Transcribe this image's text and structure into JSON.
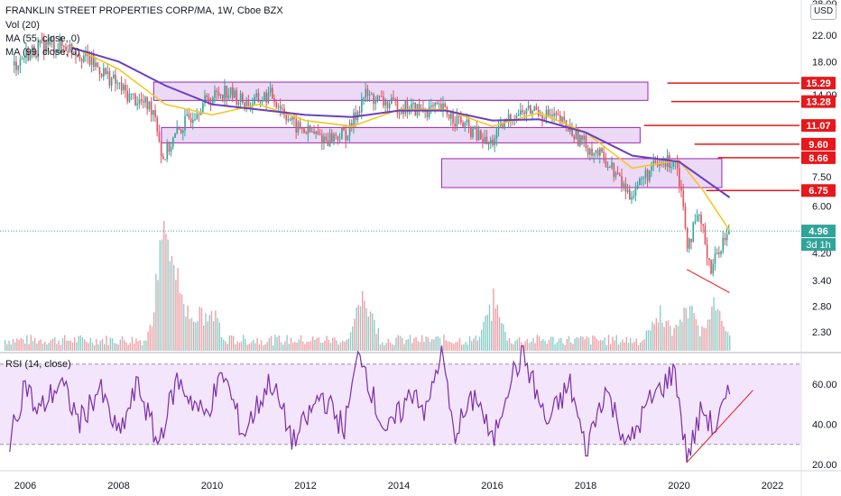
{
  "header": {
    "title": "FRANKLIN STREET PROPERTIES CORP/MA, 1W, Cboe BZX",
    "indicators": [
      "Vol (20)",
      "MA (55, close, 0)",
      "MA (99, close, 0)"
    ],
    "rsi_label": "RSI (14, close)",
    "currency": "USD"
  },
  "colors": {
    "price_candles": "#2fa59a",
    "price_candles_down": "#e0535f",
    "ma55": "#f5c518",
    "ma99": "#6a3fc1",
    "zone_fill": "#e6ccf2",
    "zone_stroke": "#9c27b0",
    "resistance": "#e8171b",
    "rsi_line": "#7b2fa8",
    "rsi_band": "#f3e5fb",
    "trend": "#e8171b"
  },
  "chart_data": {
    "type": "line",
    "title": "FRANKLIN STREET PROPERTIES CORP/MA, 1W, Cboe BZX",
    "x_ticks": [
      "2006",
      "2008",
      "2010",
      "2012",
      "2014",
      "2016",
      "2018",
      "2020",
      "2022"
    ],
    "price_axis": {
      "scale": "log",
      "ticks": [
        "28.00",
        "22.00",
        "18.00",
        "14.00",
        "11.00",
        "7.50",
        "6.00",
        "4.20",
        "3.40",
        "2.80",
        "2.30"
      ],
      "range": [
        2.1,
        28
      ]
    },
    "series": [
      {
        "type": "price",
        "points": [
          [
            "2005-10",
            17.5
          ],
          [
            "2006-01",
            19
          ],
          [
            "2006-06",
            20.5
          ],
          [
            "2007-01",
            20
          ],
          [
            "2007-08",
            17
          ],
          [
            "2008-03",
            14
          ],
          [
            "2008-10",
            12.5
          ],
          [
            "2008-12",
            8.5
          ],
          [
            "2009-04",
            10.5
          ],
          [
            "2009-10",
            13
          ],
          [
            "2010-04",
            14.5
          ],
          [
            "2010-10",
            13
          ],
          [
            "2011-04",
            14
          ],
          [
            "2011-10",
            11
          ],
          [
            "2012-06",
            10
          ],
          [
            "2012-12",
            10.5
          ],
          [
            "2013-04",
            14
          ],
          [
            "2013-10",
            13
          ],
          [
            "2014-06",
            12.5
          ],
          [
            "2014-12",
            12.5
          ],
          [
            "2015-06",
            11
          ],
          [
            "2015-12",
            9.5
          ],
          [
            "2016-06",
            12
          ],
          [
            "2016-12",
            12.5
          ],
          [
            "2017-06",
            11.5
          ],
          [
            "2018-01",
            9.5
          ],
          [
            "2018-06",
            8.5
          ],
          [
            "2018-12",
            6.5
          ],
          [
            "2019-06",
            8
          ],
          [
            "2019-12",
            8.6
          ],
          [
            "2020-03",
            4.5
          ],
          [
            "2020-06",
            5.5
          ],
          [
            "2020-09",
            3.7
          ],
          [
            "2020-12",
            4.6
          ],
          [
            "2021-02",
            4.96
          ]
        ]
      },
      {
        "type": "ma55",
        "points": [
          [
            "2007-01",
            20.2
          ],
          [
            "2008-01",
            17
          ],
          [
            "2009-01",
            13
          ],
          [
            "2010-01",
            12
          ],
          [
            "2011-01",
            13
          ],
          [
            "2012-01",
            11.5
          ],
          [
            "2013-01",
            11
          ],
          [
            "2014-01",
            12.5
          ],
          [
            "2015-01",
            12.5
          ],
          [
            "2016-01",
            11
          ],
          [
            "2017-01",
            12.2
          ],
          [
            "2018-01",
            10.5
          ],
          [
            "2019-01",
            8
          ],
          [
            "2020-01",
            8.5
          ],
          [
            "2020-07",
            6.8
          ],
          [
            "2021-01",
            5.2
          ],
          [
            "2021-02",
            4.96
          ]
        ]
      },
      {
        "type": "ma99",
        "points": [
          [
            "2007-01",
            20
          ],
          [
            "2008-01",
            18
          ],
          [
            "2009-01",
            15
          ],
          [
            "2010-01",
            13
          ],
          [
            "2011-01",
            12.5
          ],
          [
            "2012-01",
            12
          ],
          [
            "2013-01",
            11.8
          ],
          [
            "2014-01",
            12.4
          ],
          [
            "2015-01",
            12.4
          ],
          [
            "2016-01",
            11.5
          ],
          [
            "2017-01",
            11.6
          ],
          [
            "2018-01",
            10.5
          ],
          [
            "2019-01",
            8.8
          ],
          [
            "2020-01",
            8.4
          ],
          [
            "2021-02",
            6.4
          ]
        ]
      }
    ],
    "volume": {
      "spikes": [
        [
          "2008-12",
          1.0
        ],
        [
          "2009-03",
          0.75
        ],
        [
          "2013-04",
          0.85
        ],
        [
          "2016-01",
          0.6
        ],
        [
          "2019-08",
          0.45
        ],
        [
          "2020-03",
          0.55
        ],
        [
          "2020-10",
          0.55
        ]
      ]
    },
    "rsi": {
      "axis_ticks": [
        "60.00",
        "40.00",
        "20.00"
      ],
      "range": [
        15,
        80
      ],
      "band": [
        30,
        70
      ],
      "current": 55,
      "points": [
        [
          "2005-09",
          30
        ],
        [
          "2006-01",
          62
        ],
        [
          "2006-04",
          45
        ],
        [
          "2006-10",
          61
        ],
        [
          "2007-03",
          41
        ],
        [
          "2007-08",
          58
        ],
        [
          "2008-01",
          34
        ],
        [
          "2008-06",
          60
        ],
        [
          "2008-11",
          30
        ],
        [
          "2009-04",
          62
        ],
        [
          "2009-11",
          44
        ],
        [
          "2010-04",
          65
        ],
        [
          "2010-09",
          35
        ],
        [
          "2011-04",
          62
        ],
        [
          "2011-10",
          31
        ],
        [
          "2012-05",
          55
        ],
        [
          "2012-11",
          38
        ],
        [
          "2013-03",
          78
        ],
        [
          "2013-07",
          49
        ],
        [
          "2013-10",
          35
        ],
        [
          "2014-05",
          58
        ],
        [
          "2014-08",
          45
        ],
        [
          "2014-12",
          78
        ],
        [
          "2015-03",
          35
        ],
        [
          "2015-09",
          55
        ],
        [
          "2016-01",
          30
        ],
        [
          "2016-05",
          60
        ],
        [
          "2016-09",
          75
        ],
        [
          "2017-03",
          40
        ],
        [
          "2017-09",
          60
        ],
        [
          "2018-01",
          27
        ],
        [
          "2018-06",
          58
        ],
        [
          "2018-12",
          29
        ],
        [
          "2019-05",
          50
        ],
        [
          "2019-12",
          67
        ],
        [
          "2020-03",
          22
        ],
        [
          "2020-07",
          48
        ],
        [
          "2020-10",
          37
        ],
        [
          "2021-02",
          55
        ]
      ]
    },
    "resistance_levels": [
      "15.29",
      "13.28",
      "11.07",
      "9.60",
      "8.66",
      "6.75"
    ],
    "current_price": "4.96",
    "countdown": "3d 1h",
    "zones": [
      {
        "from": "2008-10",
        "to": "2019-05",
        "low": 13.4,
        "high": 15.4
      },
      {
        "from": "2008-12",
        "to": "2019-03",
        "low": 9.7,
        "high": 10.9
      },
      {
        "from": "2014-12",
        "to": "2020-12",
        "low": 6.9,
        "high": 8.6
      }
    ]
  }
}
